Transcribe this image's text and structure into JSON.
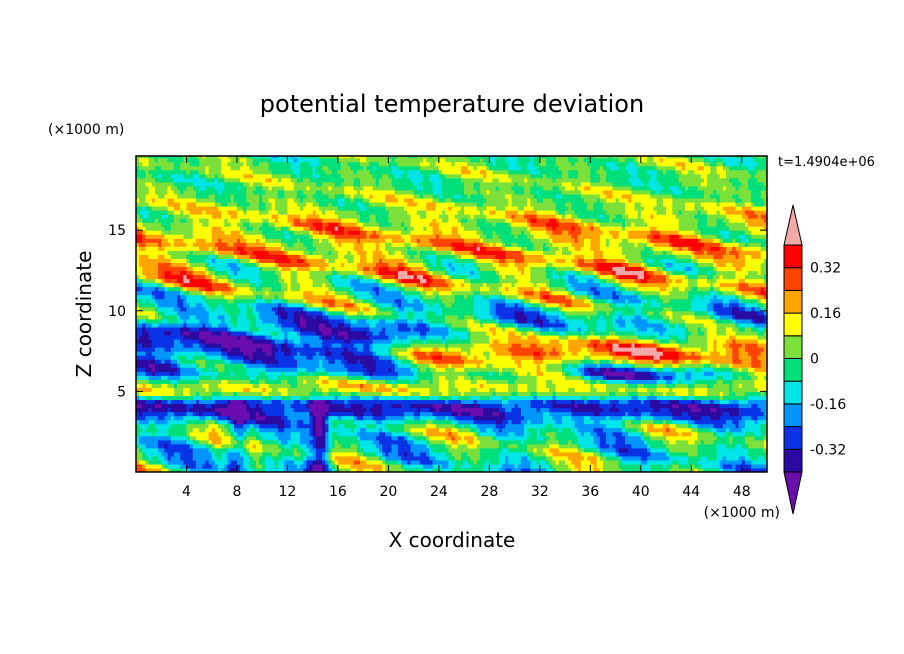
{
  "chart_data": {
    "type": "heatmap",
    "title": "potential temperature deviation",
    "xlabel": "X coordinate",
    "ylabel": "Z coordinate",
    "x_unit": "(×1000 m)",
    "y_unit": "(×1000 m)",
    "time_label": "t=1.4904e+06",
    "xlim": [
      0,
      50
    ],
    "ylim": [
      0,
      19.6
    ],
    "x_ticks": [
      "4",
      "8",
      "12",
      "16",
      "20",
      "24",
      "28",
      "32",
      "36",
      "40",
      "44",
      "48"
    ],
    "x_tick_values": [
      4,
      8,
      12,
      16,
      20,
      24,
      28,
      32,
      36,
      40,
      44,
      48
    ],
    "y_ticks": [
      "5",
      "10",
      "15"
    ],
    "y_tick_values": [
      5,
      10,
      15
    ],
    "colorbar": {
      "levels": [
        -0.4,
        -0.32,
        -0.24,
        -0.16,
        -0.08,
        0,
        0.08,
        0.16,
        0.24,
        0.32,
        0.4
      ],
      "labels": [
        "0.32",
        "0.16",
        "0",
        "-0.16",
        "-0.32"
      ],
      "label_values": [
        0.32,
        0.16,
        0,
        -0.16,
        -0.32
      ],
      "colors": [
        "#6a0dad",
        "#2a0aa0",
        "#0a33e6",
        "#0095ff",
        "#00e5e5",
        "#00e07a",
        "#7ce03a",
        "#ffff00",
        "#ffa500",
        "#ff4500",
        "#ff0000",
        "#f5a8a8"
      ],
      "extend": "both"
    }
  }
}
